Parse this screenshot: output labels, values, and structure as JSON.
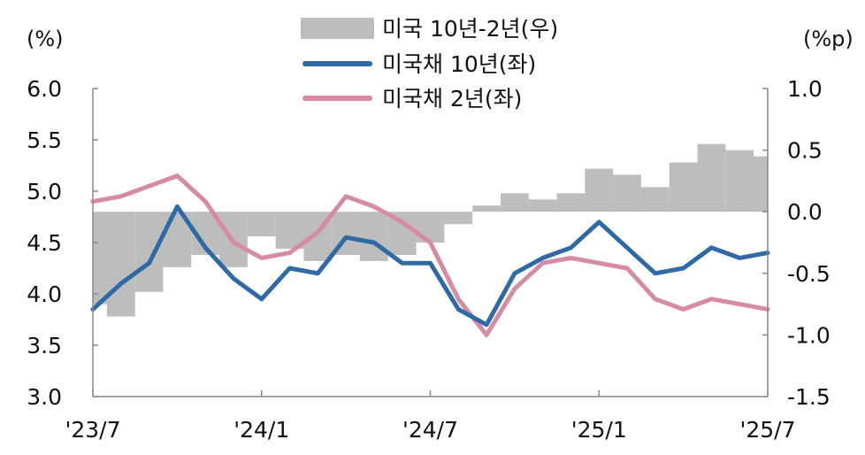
{
  "chart_data": {
    "type": "line",
    "x": [
      "2023-07",
      "2023-08",
      "2023-09",
      "2023-10",
      "2023-11",
      "2023-12",
      "2024-01",
      "2024-02",
      "2024-03",
      "2024-04",
      "2024-05",
      "2024-06",
      "2024-07",
      "2024-08",
      "2024-09",
      "2024-10",
      "2024-11",
      "2024-12",
      "2025-01",
      "2025-02",
      "2025-03",
      "2025-04",
      "2025-05",
      "2025-06",
      "2025-07"
    ],
    "x_tick_labels": [
      "'23/7",
      "'24/1",
      "'24/7",
      "'25/1",
      "'25/7"
    ],
    "y_left": {
      "unit_label": "(%)",
      "ylim": [
        3.0,
        6.0
      ],
      "ticks": [
        "3.0",
        "3.5",
        "4.0",
        "4.5",
        "5.0",
        "5.5",
        "6.0"
      ]
    },
    "y_right": {
      "unit_label": "(%p)",
      "ylim": [
        -1.5,
        1.0
      ],
      "ticks": [
        "-1.5",
        "-1.0",
        "-0.5",
        "0.0",
        "0.5",
        "1.0"
      ]
    },
    "legend_position": "top-center",
    "series": [
      {
        "name": "미국 10년-2년(우)",
        "type": "area",
        "axis": "right",
        "color": "#bdbdbd",
        "values": [
          -0.75,
          -0.85,
          -0.65,
          -0.45,
          -0.35,
          -0.45,
          -0.2,
          -0.3,
          -0.4,
          -0.35,
          -0.4,
          -0.35,
          -0.25,
          -0.1,
          0.05,
          0.15,
          0.1,
          0.15,
          0.35,
          0.3,
          0.2,
          0.4,
          0.55,
          0.5,
          0.45
        ]
      },
      {
        "name": "미국채 10년(좌)",
        "type": "line",
        "axis": "left",
        "color": "#2f6aa7",
        "values": [
          3.85,
          4.1,
          4.3,
          4.85,
          4.45,
          4.15,
          3.95,
          4.25,
          4.2,
          4.55,
          4.5,
          4.3,
          4.3,
          3.85,
          3.7,
          4.2,
          4.35,
          4.45,
          4.7,
          4.45,
          4.2,
          4.25,
          4.45,
          4.35,
          4.4
        ]
      },
      {
        "name": "미국채 2년(좌)",
        "type": "line",
        "axis": "left",
        "color": "#d68aa3",
        "values": [
          4.9,
          4.95,
          5.05,
          5.15,
          4.9,
          4.5,
          4.35,
          4.4,
          4.6,
          4.95,
          4.85,
          4.7,
          4.5,
          3.95,
          3.6,
          4.05,
          4.3,
          4.35,
          4.3,
          4.25,
          3.95,
          3.85,
          3.95,
          3.9,
          3.85
        ]
      }
    ]
  }
}
